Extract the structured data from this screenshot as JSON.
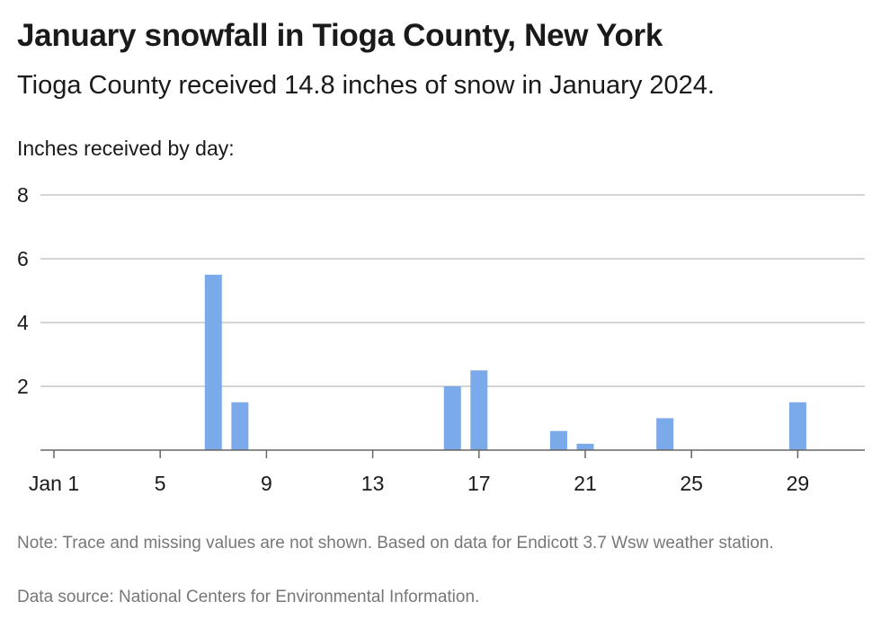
{
  "header": {
    "title": "January snowfall in Tioga County, New York",
    "subtitle": "Tioga County received 14.8 inches of snow in January 2024."
  },
  "footer": {
    "note": "Note: Trace and missing values are not shown. Based on data for Endicott 3.7 Wsw weather station.",
    "source": "Data source: National Centers for Environmental Information."
  },
  "colors": {
    "bar": "#7aaaea",
    "grid": "#bbbbbb",
    "axis": "#666666"
  },
  "chart_data": {
    "type": "bar",
    "title": "January snowfall in Tioga County, New York",
    "subtitle": "Tioga County received 14.8 inches of snow in January 2024.",
    "ylabel": "Inches received by day:",
    "xlabel": "",
    "ylim": [
      0,
      8
    ],
    "yticks": [
      2,
      4,
      6,
      8
    ],
    "xlim": [
      1,
      31
    ],
    "xticks": [
      {
        "day": 1,
        "label": "Jan 1"
      },
      {
        "day": 5,
        "label": "5"
      },
      {
        "day": 9,
        "label": "9"
      },
      {
        "day": 13,
        "label": "13"
      },
      {
        "day": 17,
        "label": "17"
      },
      {
        "day": 21,
        "label": "21"
      },
      {
        "day": 25,
        "label": "25"
      },
      {
        "day": 29,
        "label": "29"
      }
    ],
    "points": [
      {
        "day": 7,
        "value": 5.5
      },
      {
        "day": 8,
        "value": 1.5
      },
      {
        "day": 16,
        "value": 2.0
      },
      {
        "day": 17,
        "value": 2.5
      },
      {
        "day": 20,
        "value": 0.6
      },
      {
        "day": 21,
        "value": 0.2
      },
      {
        "day": 24,
        "value": 1.0
      },
      {
        "day": 29,
        "value": 1.5
      }
    ],
    "grid": true,
    "legend": "none"
  }
}
